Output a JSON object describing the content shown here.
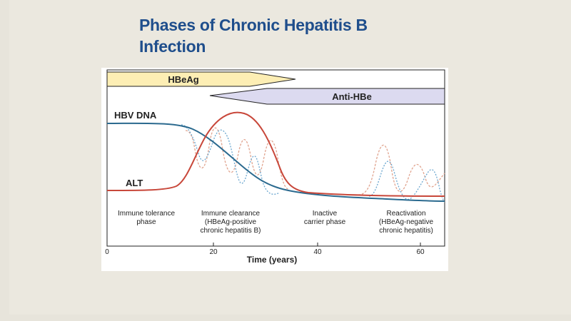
{
  "title": {
    "line1": "Phases of Chronic Hepatitis B",
    "line2": "Infection"
  },
  "colors": {
    "title": "#1f4e8c",
    "hbeag_band": "#fdeeb4",
    "anti_hbe_band": "#dcdaf0",
    "hbv_dna": "#2b6a8f",
    "alt": "#c8473a",
    "hbv_dna_dashed": "#6aa6cf",
    "alt_dashed": "#e1a48f"
  },
  "bands": {
    "hbeag": "HBeAg",
    "anti_hbe": "Anti-HBe"
  },
  "curves": {
    "hbv_dna": "HBV DNA",
    "alt": "ALT"
  },
  "phases": [
    {
      "line1": "Immune tolerance",
      "line2": "phase",
      "line3": ""
    },
    {
      "line1": "Immune clearance",
      "line2": "(HBeAg-positive",
      "line3": "chronic hepatitis B)"
    },
    {
      "line1": "Inactive",
      "line2": "carrier phase",
      "line3": ""
    },
    {
      "line1": "Reactivation",
      "line2": "(HBeAg-negative",
      "line3": "chronic hepatitis)"
    }
  ],
  "axis": {
    "ticks": [
      "0",
      "20",
      "40",
      "60"
    ],
    "label": "Time (years)"
  }
}
